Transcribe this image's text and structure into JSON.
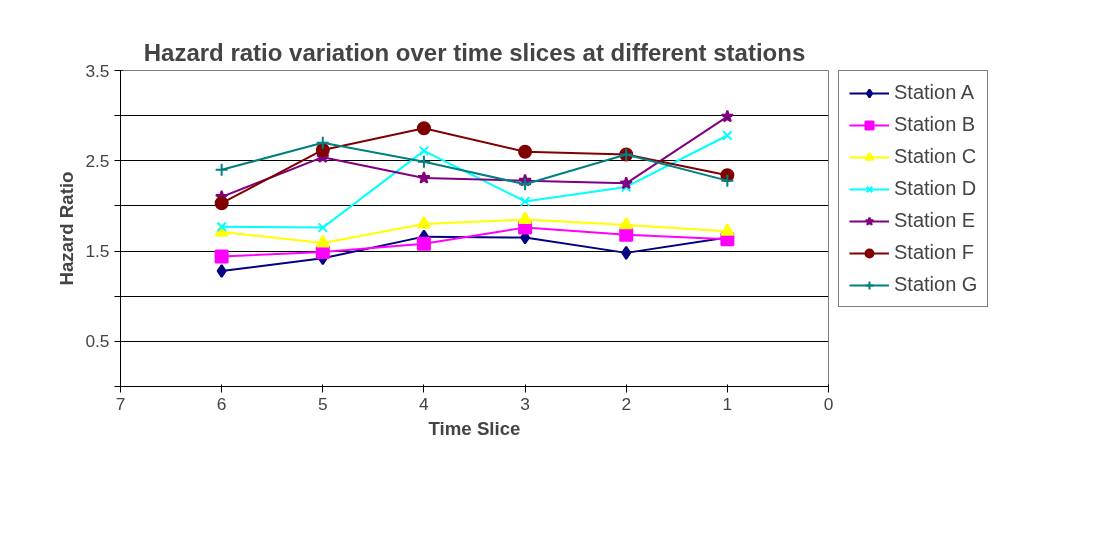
{
  "chart_data": {
    "type": "line",
    "title": "Hazard ratio variation over time slices at different stations",
    "xlabel": "Time Slice",
    "ylabel": "Hazard Ratio",
    "x": [
      6,
      5,
      4,
      3,
      2,
      1
    ],
    "xlim": [
      7,
      0
    ],
    "xticks": [
      7,
      6,
      5,
      4,
      3,
      2,
      1,
      0
    ],
    "ylim": [
      0,
      3.5
    ],
    "yticks": [
      {
        "value": 0,
        "label": null
      },
      0.5,
      {
        "value": 1,
        "label": null
      },
      1.5,
      {
        "value": 2,
        "label": null
      },
      2.5,
      {
        "value": 3,
        "label": null
      },
      3.5
    ],
    "grid": "y",
    "legend": "right",
    "line_style": "solid",
    "series": [
      {
        "name": "Station A",
        "color": "#000080",
        "marker": "diamond",
        "values": [
          1.28,
          1.42,
          1.66,
          1.65,
          1.48,
          1.65
        ]
      },
      {
        "name": "Station B",
        "color": "#ff00ff",
        "marker": "square",
        "values": [
          1.44,
          1.49,
          1.58,
          1.76,
          1.68,
          1.63
        ]
      },
      {
        "name": "Station C",
        "color": "#ffff00",
        "marker": "triangle",
        "values": [
          1.71,
          1.59,
          1.8,
          1.85,
          1.79,
          1.72
        ]
      },
      {
        "name": "Station D",
        "color": "#00ffff",
        "marker": "x",
        "values": [
          1.77,
          1.76,
          2.61,
          2.05,
          2.21,
          2.78
        ]
      },
      {
        "name": "Station E",
        "color": "#800080",
        "marker": "star",
        "values": [
          2.1,
          2.54,
          2.31,
          2.28,
          2.25,
          2.99
        ]
      },
      {
        "name": "Station F",
        "color": "#800000",
        "marker": "circle",
        "values": [
          2.03,
          2.62,
          2.86,
          2.6,
          2.57,
          2.34
        ]
      },
      {
        "name": "Station G",
        "color": "#008080",
        "marker": "cross",
        "values": [
          2.4,
          2.7,
          2.49,
          2.24,
          2.57,
          2.28
        ]
      }
    ]
  }
}
